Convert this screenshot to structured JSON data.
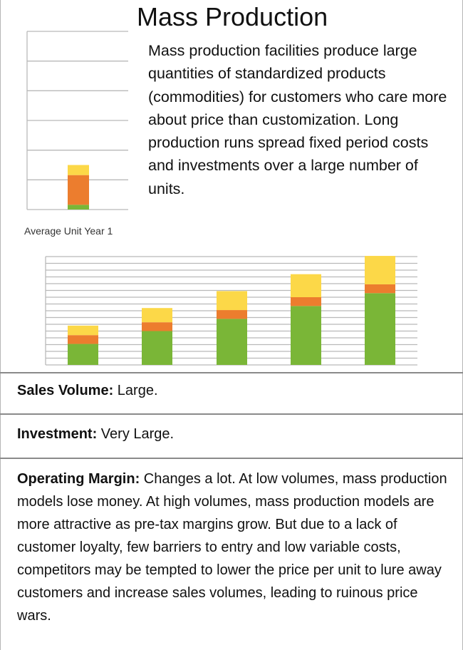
{
  "title": "Mass Production",
  "intro": "Mass production facilities produce large quantities of standardized products (commodities) for customers who care more about price than customization. Long production runs spread fixed period costs and investments over a large number of units.",
  "colors": {
    "green": "#7ab637",
    "orange": "#ec7d2e",
    "yellow": "#fcd848",
    "grid": "#b9b9b9"
  },
  "chart_data": [
    {
      "type": "bar",
      "stacked": true,
      "caption": "Average Unit Year 1",
      "categories": [
        ""
      ],
      "series": [
        {
          "color": "green",
          "values": [
            0.4
          ]
        },
        {
          "color": "orange",
          "values": [
            2.5
          ]
        },
        {
          "color": "yellow",
          "values": [
            0.85
          ]
        }
      ],
      "ylim": [
        0,
        15
      ],
      "gridlines": 6,
      "grid": true
    },
    {
      "type": "bar",
      "stacked": true,
      "categories": [
        "",
        "",
        "",
        "",
        ""
      ],
      "series": [
        {
          "color": "green",
          "values": [
            1.55,
            2.5,
            3.4,
            4.35,
            5.3
          ]
        },
        {
          "color": "orange",
          "values": [
            0.65,
            0.65,
            0.65,
            0.65,
            0.65
          ]
        },
        {
          "color": "yellow",
          "values": [
            0.7,
            1.05,
            1.4,
            1.7,
            2.1
          ]
        }
      ],
      "ylim": [
        0,
        8
      ],
      "gridlines": 16,
      "grid": true
    }
  ],
  "sections": {
    "sales": {
      "label": "Sales Volume:",
      "text": " Large."
    },
    "investment": {
      "label": "Investment:",
      "text": " Very Large."
    },
    "margin": {
      "label": "Operating Margin:",
      "text": " Changes a lot. At low volumes, mass production models lose money.  At high volumes, mass production models are more attractive as pre-tax margins grow. But due to a lack of customer loyalty, few barriers to entry and low variable costs, competitors may be tempted to lower the price per unit to lure away customers and increase sales volumes, leading to ruinous price wars."
    }
  }
}
